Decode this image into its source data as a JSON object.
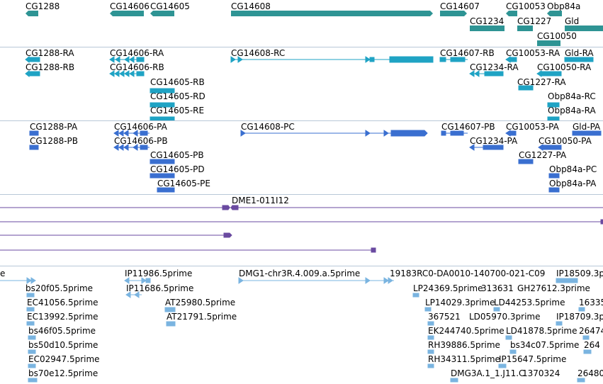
{
  "colors": {
    "gene": "#2e9494",
    "transcript": "#1fa3c4",
    "protein": "#3a6fd0",
    "clone": "#6a4aa0",
    "est": "#7ab4e0",
    "separator": "#b8c8d8"
  },
  "tracks": {
    "genes": {
      "labels": [
        "CG1288",
        "CG14606",
        "CG14605",
        "CG14608",
        "CG14607",
        "CG10053",
        "Obp84a",
        "CG1234",
        "CG1227",
        "Gld",
        "CG10050"
      ]
    },
    "transcripts": {
      "labels": [
        "CG1288-RA",
        "CG1288-RB",
        "CG14606-RA",
        "CG14606-RB",
        "CG14605-RB",
        "CG14605-RD",
        "CG14605-RE",
        "CG14608-RC",
        "CG14607-RB",
        "CG10053-RA",
        "Gld-RA",
        "CG1234-RA",
        "CG10050-RA",
        "CG1227-RA",
        "Obp84a-RC",
        "Obp84a-RA"
      ]
    },
    "proteins": {
      "labels": [
        "CG1288-PA",
        "CG1288-PB",
        "CG14606-PA",
        "CG14606-PB",
        "CG14605-PB",
        "CG14605-PD",
        "CG14605-PE",
        "CG14608-PC",
        "CG14607-PB",
        "CG10053-PA",
        "Gld-PA",
        "CG1234-PA",
        "CG10050-PA",
        "CG1227-PA",
        "Obp84a-PC",
        "Obp84a-PA"
      ]
    },
    "clones": {
      "labels": [
        "DME1-011I12"
      ]
    },
    "ests": {
      "labels": [
        "e",
        "bs20f05.5prime",
        "EC41056.5prime",
        "EC13992.5prime",
        "bs46f05.5prime",
        "bs50d10.5prime",
        "EC02947.5prime",
        "bs70e12.5prime",
        "IP11986.5prime",
        "IP11686.5prime",
        "AT25980.5prime",
        "AT21791.5prime",
        "DMG1-chr3R.4.009.a.5prime",
        "19183RC0-DA0010-140700-021-C09",
        "IP18509.3p",
        "LP24369.5prime",
        "313631",
        "GH27612.3prime",
        "LP14029.3prime",
        "LD44253.5prime",
        "16335",
        "367521",
        "LD05970.3prime",
        "IP18709.3p",
        "EK244740.5prime",
        "LD41878.5prime",
        "26474",
        "RH39886.5prime",
        "bs34c07.5prime",
        "264",
        "RH34311.5prime",
        "IP15647.5prime",
        "DMG3A.1_1.J11.C",
        "1370324",
        "26480"
      ]
    }
  }
}
